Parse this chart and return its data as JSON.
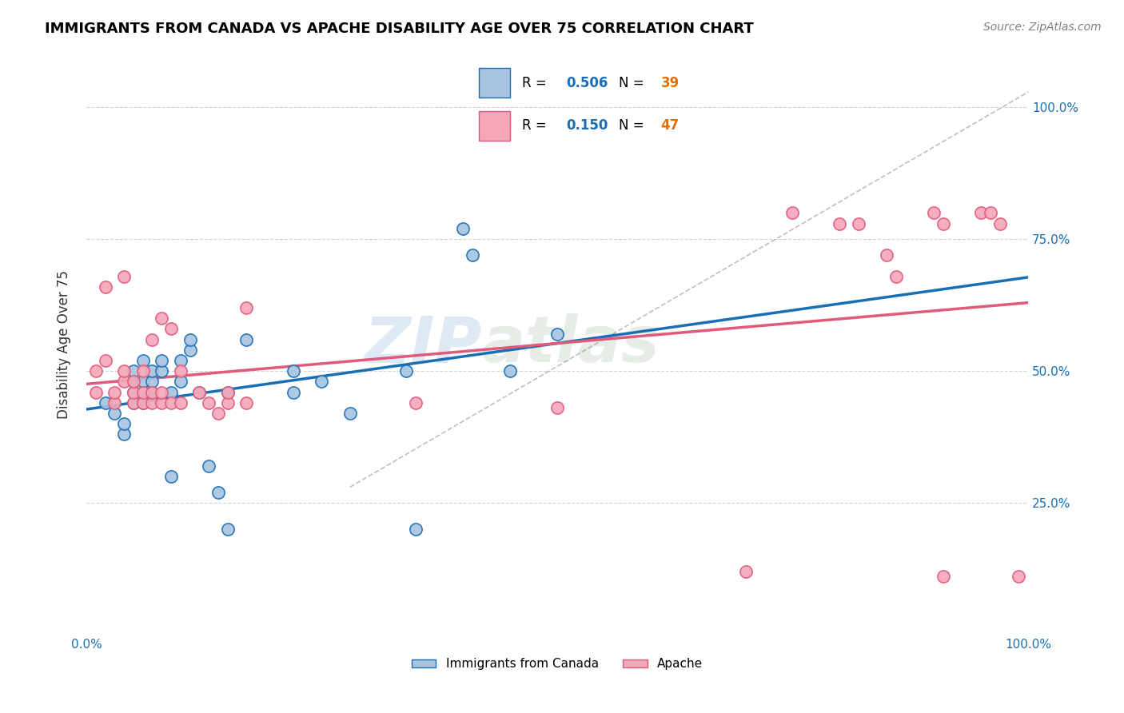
{
  "title": "IMMIGRANTS FROM CANADA VS APACHE DISABILITY AGE OVER 75 CORRELATION CHART",
  "source": "Source: ZipAtlas.com",
  "ylabel": "Disability Age Over 75",
  "legend_blue_r": "0.506",
  "legend_blue_n": "39",
  "legend_pink_r": "0.150",
  "legend_pink_n": "47",
  "legend_label_blue": "Immigrants from Canada",
  "legend_label_pink": "Apache",
  "blue_color": "#a8c4e0",
  "blue_line_color": "#1a6eb5",
  "pink_color": "#f4a7b9",
  "pink_line_color": "#e05a7a",
  "n_color": "#e07000",
  "watermark_zip": "ZIP",
  "watermark_atlas": "atlas",
  "blue_scatter_x": [
    0.02,
    0.03,
    0.04,
    0.04,
    0.05,
    0.05,
    0.05,
    0.05,
    0.06,
    0.06,
    0.06,
    0.06,
    0.07,
    0.07,
    0.07,
    0.08,
    0.08,
    0.09,
    0.09,
    0.1,
    0.1,
    0.11,
    0.11,
    0.12,
    0.13,
    0.14,
    0.15,
    0.15,
    0.17,
    0.22,
    0.22,
    0.25,
    0.28,
    0.34,
    0.35,
    0.4,
    0.41,
    0.45,
    0.5
  ],
  "blue_scatter_y": [
    0.44,
    0.42,
    0.38,
    0.4,
    0.48,
    0.44,
    0.46,
    0.5,
    0.44,
    0.46,
    0.48,
    0.52,
    0.46,
    0.48,
    0.5,
    0.5,
    0.52,
    0.3,
    0.46,
    0.48,
    0.52,
    0.54,
    0.56,
    0.46,
    0.32,
    0.27,
    0.2,
    0.46,
    0.56,
    0.5,
    0.46,
    0.48,
    0.42,
    0.5,
    0.2,
    0.77,
    0.72,
    0.5,
    0.57
  ],
  "pink_scatter_x": [
    0.01,
    0.01,
    0.02,
    0.02,
    0.03,
    0.03,
    0.04,
    0.04,
    0.04,
    0.05,
    0.05,
    0.05,
    0.06,
    0.06,
    0.06,
    0.07,
    0.07,
    0.07,
    0.08,
    0.08,
    0.08,
    0.09,
    0.09,
    0.1,
    0.1,
    0.12,
    0.13,
    0.14,
    0.15,
    0.15,
    0.17,
    0.17,
    0.35,
    0.5,
    0.7,
    0.75,
    0.8,
    0.82,
    0.85,
    0.86,
    0.9,
    0.91,
    0.91,
    0.95,
    0.96,
    0.97,
    0.99
  ],
  "pink_scatter_y": [
    0.5,
    0.46,
    0.66,
    0.52,
    0.44,
    0.46,
    0.48,
    0.5,
    0.68,
    0.44,
    0.46,
    0.48,
    0.44,
    0.46,
    0.5,
    0.44,
    0.46,
    0.56,
    0.44,
    0.46,
    0.6,
    0.44,
    0.58,
    0.44,
    0.5,
    0.46,
    0.44,
    0.42,
    0.44,
    0.46,
    0.44,
    0.62,
    0.44,
    0.43,
    0.12,
    0.8,
    0.78,
    0.78,
    0.72,
    0.68,
    0.8,
    0.78,
    0.11,
    0.8,
    0.8,
    0.78,
    0.11
  ],
  "xlim": [
    0.0,
    1.0
  ],
  "ylim": [
    0.0,
    1.1
  ]
}
